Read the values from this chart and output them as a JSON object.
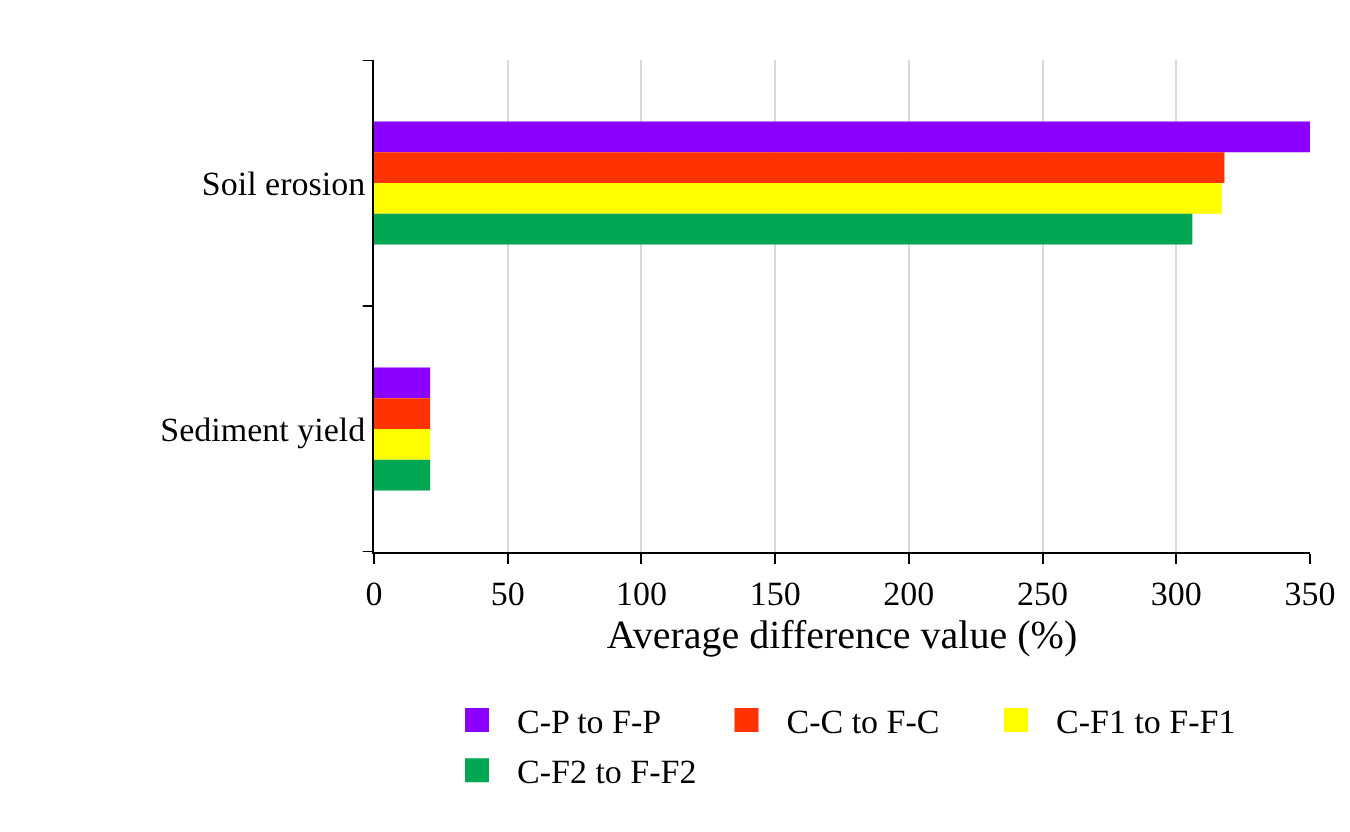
{
  "chart_data": {
    "type": "bar",
    "orientation": "horizontal",
    "xlabel": "Average difference value (%)",
    "categories": [
      "Soil erosion",
      "Sediment yield"
    ],
    "series": [
      {
        "name": "C-P to F-P",
        "color": "#8b00ff",
        "values": [
          350,
          21
        ]
      },
      {
        "name": "C-C to F-C",
        "color": "#ff3300",
        "values": [
          318,
          21
        ]
      },
      {
        "name": "C-F1 to F-F1",
        "color": "#ffff00",
        "values": [
          317,
          21
        ]
      },
      {
        "name": "C-F2 to F-F2",
        "color": "#00a651",
        "values": [
          306,
          21
        ]
      }
    ],
    "xlim": [
      0,
      350
    ],
    "xticks": [
      0,
      50,
      100,
      150,
      200,
      250,
      300,
      350
    ],
    "grid": "x",
    "legend": "bottom"
  }
}
